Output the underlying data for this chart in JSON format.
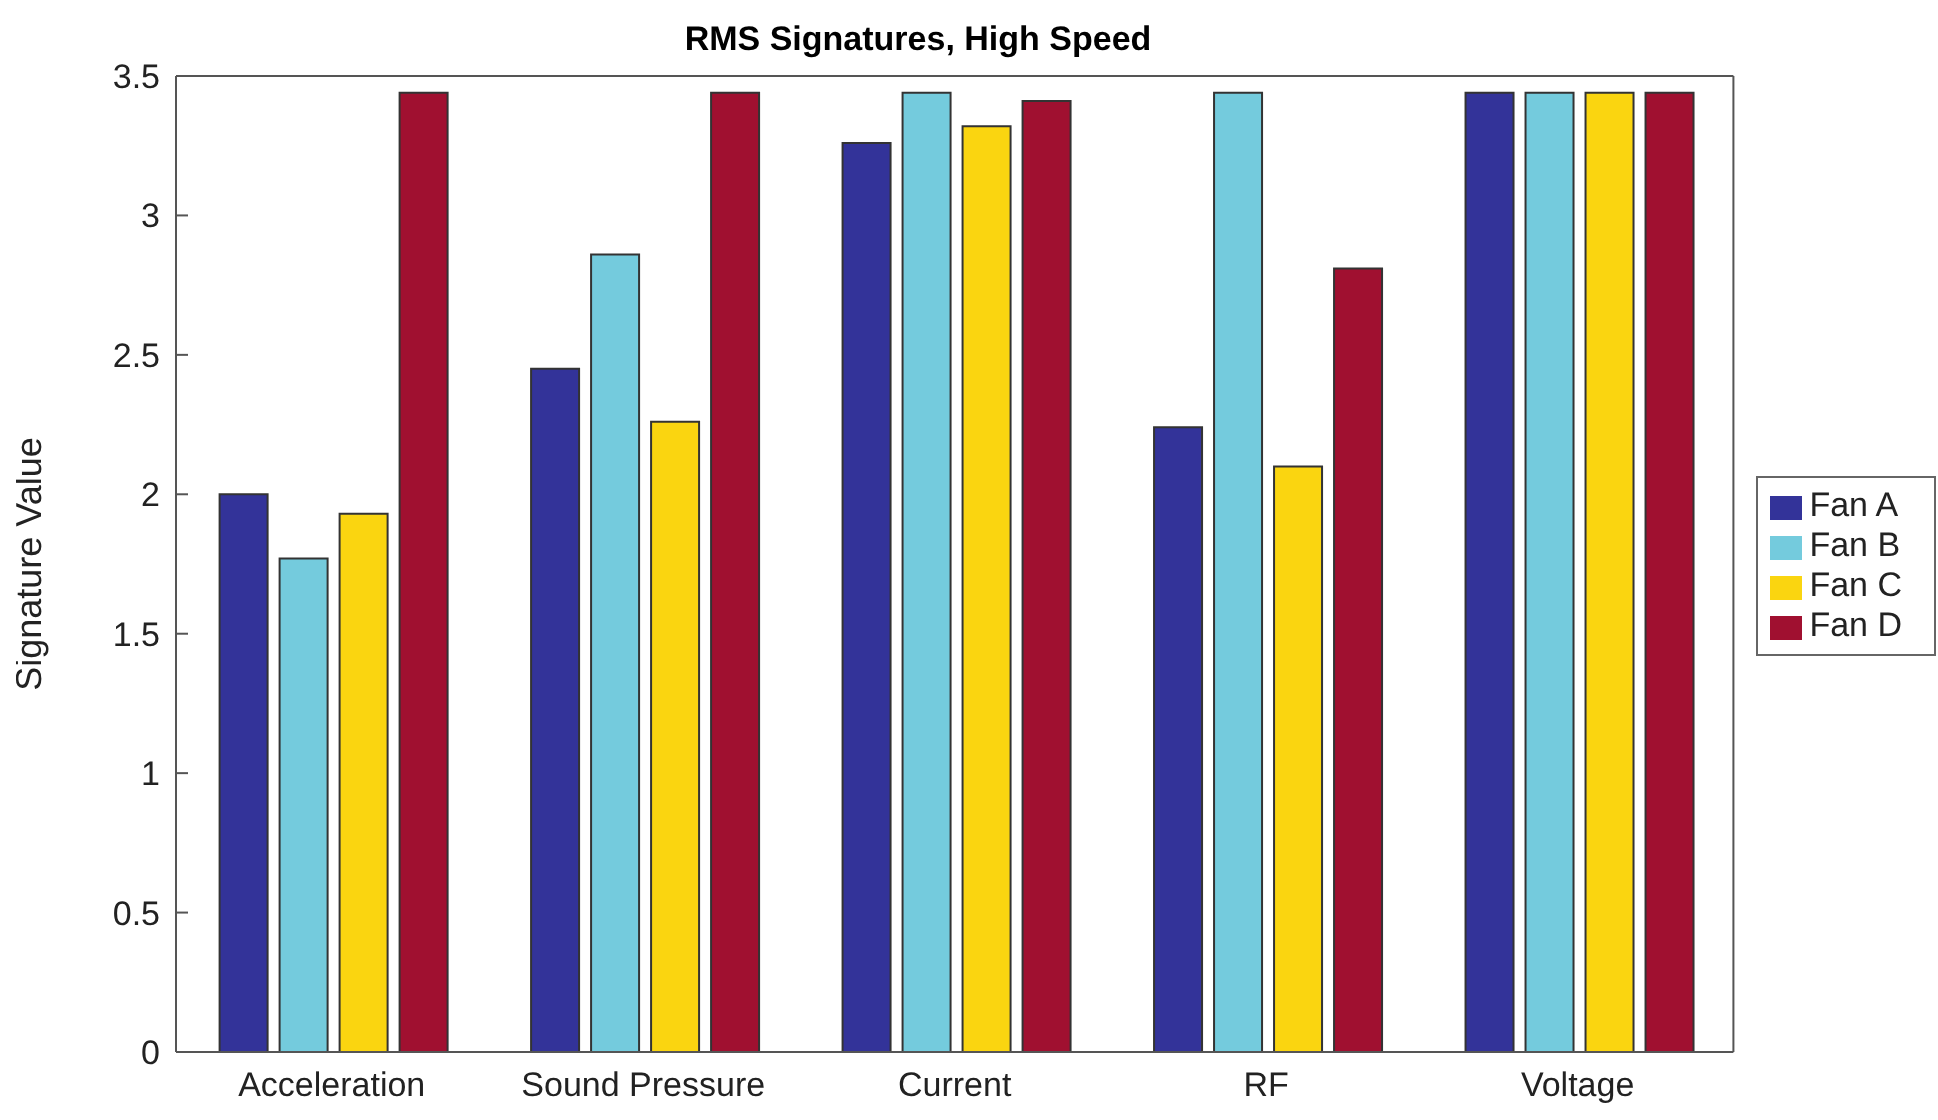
{
  "chart_data": {
    "type": "bar",
    "title": "RMS Signatures, High Speed",
    "ylabel": "Signature Value",
    "categories": [
      "Acceleration",
      "Sound Pressure",
      "Current",
      "RF",
      "Voltage"
    ],
    "series": [
      {
        "name": "Fan A",
        "color": "#333399",
        "values": [
          2.0,
          2.45,
          3.26,
          2.24,
          3.44
        ]
      },
      {
        "name": "Fan B",
        "color": "#74cbdd",
        "values": [
          1.77,
          2.86,
          3.44,
          3.44,
          3.44
        ]
      },
      {
        "name": "Fan C",
        "color": "#fad510",
        "values": [
          1.93,
          2.26,
          3.32,
          2.1,
          3.44
        ]
      },
      {
        "name": "Fan D",
        "color": "#a01030",
        "values": [
          3.44,
          3.44,
          3.41,
          2.81,
          3.44
        ]
      }
    ],
    "ylim": [
      0,
      3.5
    ],
    "yticks": [
      0,
      0.5,
      1,
      1.5,
      2,
      2.5,
      3,
      3.5
    ],
    "grid": false,
    "legend": "right"
  }
}
